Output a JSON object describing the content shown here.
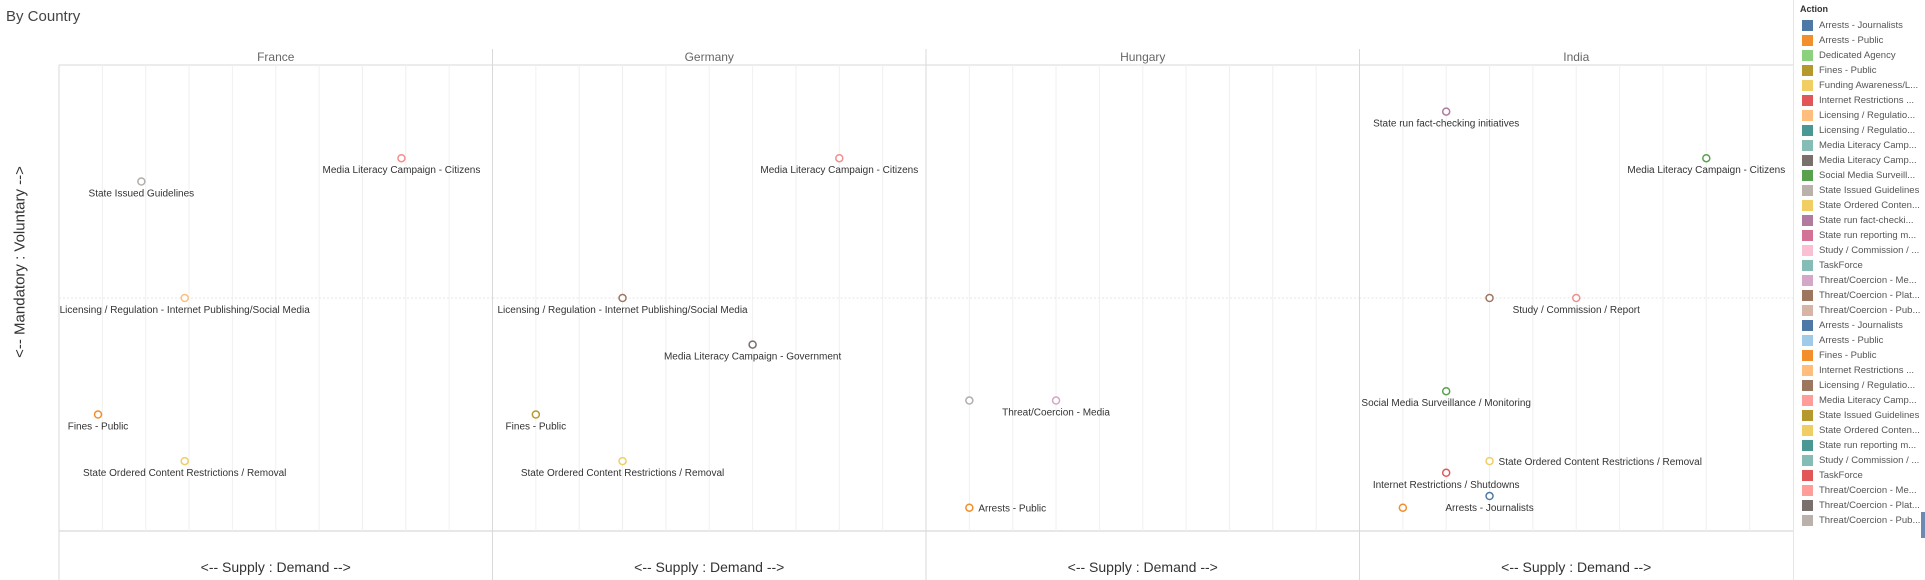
{
  "page": {
    "title": "By Country"
  },
  "chart_data": {
    "type": "scatter",
    "title": "By Country",
    "xlabel": "<-- Supply : Demand -->",
    "ylabel": "<-- Mandatory : Voluntary -->",
    "xlim": [
      0,
      1
    ],
    "ylim": [
      0,
      1
    ],
    "grid": true,
    "legend_position": "right",
    "legend_title": "Action",
    "panels": [
      {
        "name": "France",
        "points": [
          {
            "label": "Media Literacy Campaign - Citizens",
            "x": 0.79,
            "y": 0.8,
            "color": "#f28e8c"
          },
          {
            "label": "State Issued Guidelines",
            "x": 0.19,
            "y": 0.75,
            "color": "#b2aeab"
          },
          {
            "label": "Licensing / Regulation - Internet Publishing/Social Media",
            "x": 0.29,
            "y": 0.5,
            "color": "#ffbe7d"
          },
          {
            "label": "Fines - Public",
            "x": 0.09,
            "y": 0.25,
            "color": "#f28e2b"
          },
          {
            "label": "State Ordered Content Restrictions / Removal",
            "x": 0.29,
            "y": 0.15,
            "color": "#f1ce63"
          }
        ]
      },
      {
        "name": "Germany",
        "points": [
          {
            "label": "Media Literacy Campaign - Citizens",
            "x": 0.8,
            "y": 0.8,
            "color": "#f28e8c"
          },
          {
            "label": "Licensing / Regulation - Internet Publishing/Social Media",
            "x": 0.3,
            "y": 0.5,
            "color": "#9d7660"
          },
          {
            "label": "Media Literacy Campaign - Government",
            "x": 0.6,
            "y": 0.4,
            "color": "#79706e"
          },
          {
            "label": "Fines - Public",
            "x": 0.1,
            "y": 0.25,
            "color": "#b6992d"
          },
          {
            "label": "State Ordered Content Restrictions / Removal",
            "x": 0.3,
            "y": 0.15,
            "color": "#f1ce63"
          }
        ]
      },
      {
        "name": "Hungary",
        "points": [
          {
            "label": "",
            "x": 0.1,
            "y": 0.28,
            "color": "#b2aeab"
          },
          {
            "label": "Threat/Coercion - Media",
            "x": 0.3,
            "y": 0.28,
            "color": "#d4a6c8"
          },
          {
            "label": "Arrests - Public",
            "x": 0.1,
            "y": 0.05,
            "color": "#f28e2b"
          }
        ]
      },
      {
        "name": "India",
        "points": [
          {
            "label": "State run fact-checking initiatives",
            "x": 0.2,
            "y": 0.9,
            "color": "#b07aa1"
          },
          {
            "label": "Media Literacy Campaign - Citizens",
            "x": 0.8,
            "y": 0.8,
            "color": "#59a14f"
          },
          {
            "label": "",
            "x": 0.3,
            "y": 0.5,
            "color": "#9d7660"
          },
          {
            "label": "Study / Commission / Report",
            "x": 0.5,
            "y": 0.5,
            "color": "#f28e8c"
          },
          {
            "label": "Social Media Surveillance / Monitoring",
            "x": 0.2,
            "y": 0.3,
            "color": "#59a14f"
          },
          {
            "label": "State Ordered Content Restrictions / Removal",
            "x": 0.3,
            "y": 0.15,
            "color": "#f1ce63"
          },
          {
            "label": "Internet Restrictions / Shutdowns",
            "x": 0.2,
            "y": 0.125,
            "color": "#e15759"
          },
          {
            "label": "Arrests - Journalists",
            "x": 0.3,
            "y": 0.075,
            "color": "#4e79a7"
          },
          {
            "label": "",
            "x": 0.1,
            "y": 0.05,
            "color": "#f28e2b"
          }
        ]
      }
    ]
  },
  "legend": {
    "title": "Action",
    "items": [
      {
        "label": "Arrests - Journalists",
        "color": "#4e79a7"
      },
      {
        "label": "Arrests - Public",
        "color": "#f28e2b"
      },
      {
        "label": "Dedicated Agency",
        "color": "#8cd17d"
      },
      {
        "label": "Fines - Public",
        "color": "#b6992d"
      },
      {
        "label": "Funding Awareness/L...",
        "color": "#f1ce63"
      },
      {
        "label": "Internet Restrictions ...",
        "color": "#e15759"
      },
      {
        "label": "Licensing / Regulatio...",
        "color": "#ffbe7d"
      },
      {
        "label": "Licensing / Regulatio...",
        "color": "#499894"
      },
      {
        "label": "Media Literacy Camp...",
        "color": "#86bcb6"
      },
      {
        "label": "Media Literacy Camp...",
        "color": "#79706e"
      },
      {
        "label": "Social Media Surveill...",
        "color": "#59a14f"
      },
      {
        "label": "State Issued Guidelines",
        "color": "#bab0ac"
      },
      {
        "label": "State Ordered Conten...",
        "color": "#f1ce63"
      },
      {
        "label": "State run fact-checki...",
        "color": "#b07aa1"
      },
      {
        "label": "State run reporting m...",
        "color": "#d37295"
      },
      {
        "label": "Study / Commission / ...",
        "color": "#fabfd2"
      },
      {
        "label": "TaskForce",
        "color": "#86bcb6"
      },
      {
        "label": "Threat/Coercion - Me...",
        "color": "#d4a6c8"
      },
      {
        "label": "Threat/Coercion - Plat...",
        "color": "#9d7660"
      },
      {
        "label": "Threat/Coercion - Pub...",
        "color": "#d7b5a6"
      },
      {
        "label": "Arrests - Journalists",
        "color": "#4e79a7"
      },
      {
        "label": "Arrests - Public",
        "color": "#a0cbe8"
      },
      {
        "label": "Fines - Public",
        "color": "#f28e2b"
      },
      {
        "label": "Internet Restrictions ...",
        "color": "#ffbe7d"
      },
      {
        "label": "Licensing / Regulatio...",
        "color": "#9d7660"
      },
      {
        "label": "Media Literacy Camp...",
        "color": "#ff9d9a"
      },
      {
        "label": "State Issued Guidelines",
        "color": "#b6992d"
      },
      {
        "label": "State Ordered Conten...",
        "color": "#f1ce63"
      },
      {
        "label": "State run reporting m...",
        "color": "#499894"
      },
      {
        "label": "Study / Commission / ...",
        "color": "#86bcb6"
      },
      {
        "label": "TaskForce",
        "color": "#e15759"
      },
      {
        "label": "Threat/Coercion - Me...",
        "color": "#ff9d9a"
      },
      {
        "label": "Threat/Coercion - Plat...",
        "color": "#79706e"
      },
      {
        "label": "Threat/Coercion - Pub...",
        "color": "#bab0ac"
      }
    ]
  }
}
